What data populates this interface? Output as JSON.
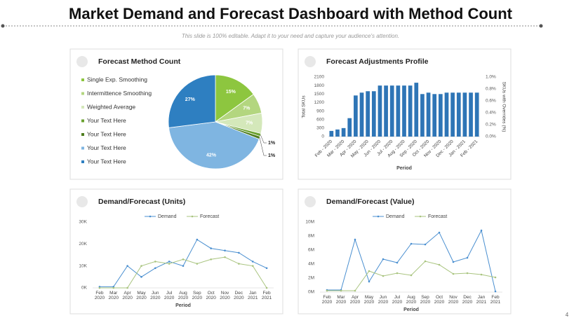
{
  "title": "Market Demand and Forecast Dashboard with Method Count",
  "subtitle": "This slide is 100% editable. Adapt it to your need and capture your audience's attention.",
  "page_number": "4",
  "chart_data": [
    {
      "type": "pie",
      "title": "Forecast Method Count",
      "categories": [
        "Single Exp. Smoothing",
        "Intermittence Smoothing",
        "Weighted Average",
        "Your Text Here",
        "Your Text Here",
        "Your Text Here",
        "Your Text Here"
      ],
      "values": [
        15,
        7,
        7,
        1,
        1,
        42,
        27
      ],
      "value_labels": [
        "15%",
        "7%",
        "7%",
        "1%",
        "1%",
        "42%",
        "27%"
      ],
      "colors": [
        "#8dc63f",
        "#b3d67f",
        "#d4e8ba",
        "#6aa12f",
        "#4f7d1f",
        "#7fb5e1",
        "#2e7fc1"
      ]
    },
    {
      "type": "bar",
      "title": "Forecast Adjustments Profile",
      "categories": [
        "Feb - 2020",
        null,
        "Mar - 2020",
        null,
        "Apr - 2020",
        null,
        "May - 2020",
        null,
        "Jun - 2020",
        null,
        "Jul - 2020",
        null,
        "Aug - 2020",
        null,
        "Sep - 2020",
        null,
        "Oct - 2020",
        null,
        "Nov - 2020",
        null,
        "Dec - 2020",
        null,
        "Jan - 2021",
        null,
        "Feb - 2021"
      ],
      "values": [
        200,
        250,
        300,
        650,
        1450,
        1550,
        1600,
        1600,
        1800,
        1800,
        1800,
        1800,
        1800,
        1800,
        1900,
        1500,
        1550,
        1500,
        1500,
        1550,
        1550,
        1550,
        1550,
        1550,
        1550
      ],
      "color": "#2e75b6",
      "ylim": [
        0,
        2100
      ],
      "yticks": [
        0,
        300,
        600,
        900,
        1200,
        1500,
        1800,
        2100
      ],
      "y2lim": [
        0,
        1
      ],
      "y2ticks": [
        {
          "value": 0,
          "label": "0.0%"
        },
        {
          "value": 0.2,
          "label": "0.2%"
        },
        {
          "value": 0.4,
          "label": "0.4%"
        },
        {
          "value": 0.6,
          "label": "0.6%"
        },
        {
          "value": 0.8,
          "label": "0.8%"
        },
        {
          "value": 1,
          "label": "1.0%"
        }
      ],
      "ylabel": "Total SKUs",
      "y2label": "SKUs with Overrides (%)",
      "xlabel": "Period",
      "grid": false
    },
    {
      "type": "line",
      "title": "Demand/Forecast (Units)",
      "categories": [
        "Feb 2020",
        "Mar 2020",
        "Apr 2020",
        "May 2020",
        "Jun 2020",
        "Jul 2020",
        "Aug 2020",
        "Sep 2020",
        "Oct 2020",
        "Nov 2020",
        "Dec 2020",
        "Jan 2021",
        "Feb 2021"
      ],
      "series": [
        {
          "name": "Demand",
          "color": "#4a8fd0",
          "values": [
            500,
            500,
            10000,
            5000,
            9000,
            12000,
            10000,
            22000,
            18000,
            17000,
            16000,
            12000,
            9000
          ]
        },
        {
          "name": "Forecast",
          "color": "#a9c47f",
          "values": [
            0,
            0,
            0,
            10000,
            12000,
            11000,
            13000,
            11000,
            13000,
            14000,
            11000,
            10000,
            0
          ]
        }
      ],
      "ylim": [
        0,
        30000
      ],
      "yticks": [
        {
          "value": 0,
          "label": "0K"
        },
        {
          "value": 10000,
          "label": "10K"
        },
        {
          "value": 20000,
          "label": "20K"
        },
        {
          "value": 30000,
          "label": "30K"
        }
      ],
      "xlabel": "Period",
      "legend": "top",
      "grid": false
    },
    {
      "type": "line",
      "title": "Demand/Forecast (Value)",
      "categories": [
        "Feb 2020",
        "Mar 2020",
        "Apr 2020",
        "May 2020",
        "Jun 2020",
        "Jul 2020",
        "Aug 2020",
        "Sep 2020",
        "Oct 2020",
        "Nov 2020",
        "Dec 2020",
        "Jan 2021",
        "Feb 2021"
      ],
      "series": [
        {
          "name": "Demand",
          "color": "#4a8fd0",
          "values": [
            300000,
            300000,
            7500000,
            1500000,
            4700000,
            4200000,
            6900000,
            6800000,
            8500000,
            4300000,
            4900000,
            8800000,
            100000
          ]
        },
        {
          "name": "Forecast",
          "color": "#a9c47f",
          "values": [
            200000,
            200000,
            200000,
            3000000,
            2300000,
            2700000,
            2400000,
            4400000,
            3900000,
            2600000,
            2700000,
            2500000,
            2100000
          ]
        }
      ],
      "ylim": [
        0,
        10000000
      ],
      "yticks": [
        {
          "value": 0,
          "label": "0M"
        },
        {
          "value": 2000000,
          "label": "2M"
        },
        {
          "value": 4000000,
          "label": "4M"
        },
        {
          "value": 6000000,
          "label": "6M"
        },
        {
          "value": 8000000,
          "label": "8M"
        },
        {
          "value": 10000000,
          "label": "10M"
        }
      ],
      "xlabel": "Period",
      "legend": "top",
      "grid": false
    }
  ]
}
